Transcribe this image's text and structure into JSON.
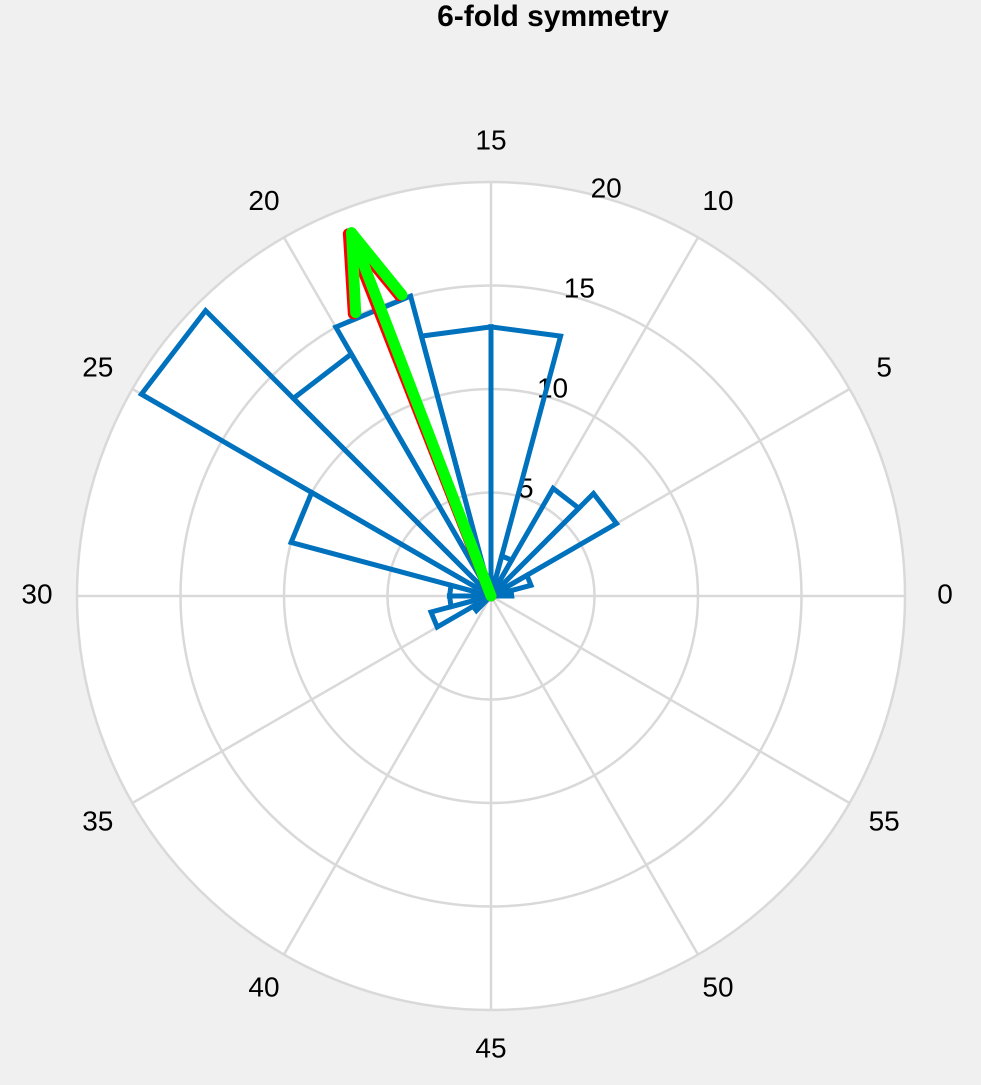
{
  "chart_data": {
    "type": "polar-histogram",
    "title": "6-fold symmetry",
    "angle_labels": [
      "0",
      "5",
      "10",
      "15",
      "20",
      "25",
      "30",
      "35",
      "40",
      "45",
      "50",
      "55"
    ],
    "angle_label_degrees": [
      0,
      30,
      60,
      90,
      120,
      150,
      180,
      210,
      240,
      270,
      300,
      330
    ],
    "radial_ticks": [
      "5",
      "10",
      "15",
      "20"
    ],
    "rlim": [
      0,
      20
    ],
    "bin_width_degrees": 15,
    "series": [
      {
        "kind": "histogram",
        "color": "#0072bd",
        "bins": [
          {
            "start": 0,
            "end": 15,
            "value": 1
          },
          {
            "start": 15,
            "end": 30,
            "value": 2
          },
          {
            "start": 30,
            "end": 45,
            "value": 7
          },
          {
            "start": 45,
            "end": 60,
            "value": 6
          },
          {
            "start": 60,
            "end": 75,
            "value": 2
          },
          {
            "start": 75,
            "end": 90,
            "value": 13
          },
          {
            "start": 90,
            "end": 105,
            "value": 13
          },
          {
            "start": 105,
            "end": 120,
            "value": 15
          },
          {
            "start": 120,
            "end": 135,
            "value": 13.5
          },
          {
            "start": 135,
            "end": 150,
            "value": 19.5
          },
          {
            "start": 150,
            "end": 165,
            "value": 10
          },
          {
            "start": 165,
            "end": 180,
            "value": 2
          },
          {
            "start": 180,
            "end": 195,
            "value": 2
          },
          {
            "start": 195,
            "end": 210,
            "value": 3
          },
          {
            "start": 210,
            "end": 225,
            "value": 1
          }
        ]
      },
      {
        "kind": "arrow",
        "color": "#ff0000",
        "angle_degrees": 111.5,
        "magnitude": 18.8
      },
      {
        "kind": "arrow",
        "color": "#00ff00",
        "angle_degrees": 111.0,
        "magnitude": 18.8
      }
    ],
    "grid": true
  }
}
